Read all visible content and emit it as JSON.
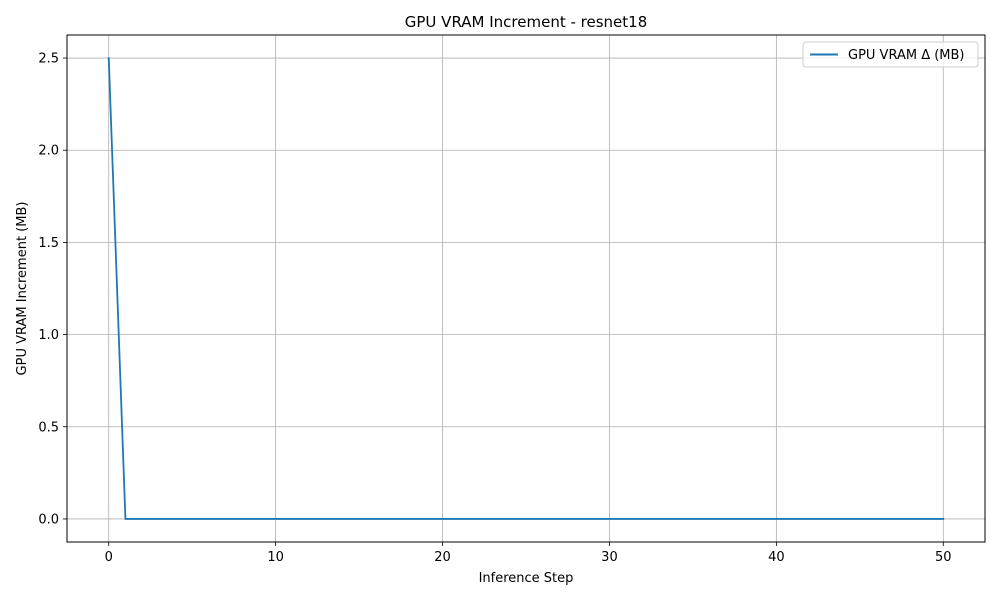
{
  "chart_data": {
    "type": "line",
    "title": "GPU VRAM Increment - resnet18",
    "xlabel": "Inference Step",
    "ylabel": "GPU VRAM Increment (MB)",
    "xlim": [
      -2.5,
      52.5
    ],
    "ylim": [
      -0.125,
      2.625
    ],
    "xticks": [
      0,
      10,
      20,
      30,
      40,
      50
    ],
    "yticks": [
      0.0,
      0.5,
      1.0,
      1.5,
      2.0,
      2.5
    ],
    "xtick_labels": [
      "0",
      "10",
      "20",
      "30",
      "40",
      "50"
    ],
    "ytick_labels": [
      "0.0",
      "0.5",
      "1.0",
      "1.5",
      "2.0",
      "2.5"
    ],
    "grid": true,
    "legend_position": "top-right",
    "series": [
      {
        "name": "GPU VRAM Δ (MB)",
        "color": "#1f77b4",
        "x": [
          0,
          1,
          2,
          3,
          4,
          5,
          6,
          7,
          8,
          9,
          10,
          11,
          12,
          13,
          14,
          15,
          16,
          17,
          18,
          19,
          20,
          21,
          22,
          23,
          24,
          25,
          26,
          27,
          28,
          29,
          30,
          31,
          32,
          33,
          34,
          35,
          36,
          37,
          38,
          39,
          40,
          41,
          42,
          43,
          44,
          45,
          46,
          47,
          48,
          49,
          50
        ],
        "y": [
          2.5,
          0,
          0,
          0,
          0,
          0,
          0,
          0,
          0,
          0,
          0,
          0,
          0,
          0,
          0,
          0,
          0,
          0,
          0,
          0,
          0,
          0,
          0,
          0,
          0,
          0,
          0,
          0,
          0,
          0,
          0,
          0,
          0,
          0,
          0,
          0,
          0,
          0,
          0,
          0,
          0,
          0,
          0,
          0,
          0,
          0,
          0,
          0,
          0,
          0,
          0
        ]
      }
    ]
  }
}
